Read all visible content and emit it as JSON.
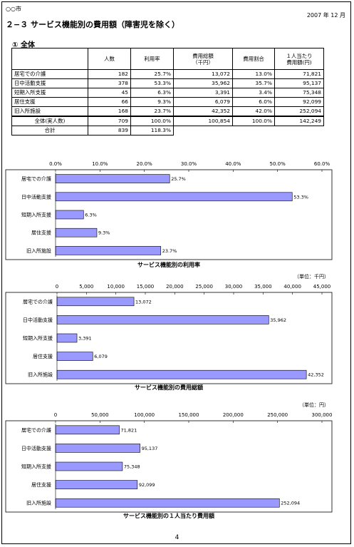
{
  "header": {
    "city": "○○市",
    "date": "2007 年 12 月",
    "title": "２−３ サービス機能別の費用額（障害児を除く）"
  },
  "section": {
    "title": "① 全体"
  },
  "table": {
    "headers": [
      "",
      "人数",
      "利用率",
      "費用総額\n（千円）",
      "費用割合",
      "１人当たり\n費用額(円)"
    ],
    "rows": [
      [
        "居宅での介護",
        "182",
        "25.7%",
        "13,072",
        "13.0%",
        "71,821"
      ],
      [
        "日中活動支援",
        "378",
        "53.3%",
        "35,962",
        "35.7%",
        "95,137"
      ],
      [
        "短期入所支援",
        "45",
        "6.3%",
        "3,391",
        "3.4%",
        "75,348"
      ],
      [
        "居住支援",
        "66",
        "9.3%",
        "6,079",
        "6.0%",
        "92,099"
      ],
      [
        "旧入所施設",
        "168",
        "23.7%",
        "42,352",
        "42.0%",
        "252,094"
      ]
    ],
    "total_row": [
      "全体(実人数)",
      "709",
      "100.0%",
      "100,854",
      "100.0%",
      "142,249"
    ],
    "sum_row": [
      "合計",
      "839",
      "118.3%"
    ]
  },
  "chart_data": [
    {
      "type": "bar",
      "orientation": "horizontal",
      "title": "サービス機能別の利用率",
      "unit": "",
      "categories": [
        "居宅での介護",
        "日中活動支援",
        "短期入所支援",
        "居住支援",
        "旧入所施設"
      ],
      "values": [
        25.7,
        53.3,
        6.3,
        9.3,
        23.7
      ],
      "value_labels": [
        "25.7%",
        "53.3%",
        "6.3%",
        "9.3%",
        "23.7%"
      ],
      "xlim": [
        0,
        60
      ],
      "ticks": [
        0,
        10,
        20,
        30,
        40,
        50,
        60
      ],
      "tick_labels": [
        "0.0%",
        "10.0%",
        "20.0%",
        "30.0%",
        "40.0%",
        "50.0%",
        "60.0%"
      ],
      "bar_color": "#9999ff"
    },
    {
      "type": "bar",
      "orientation": "horizontal",
      "title": "サービス機能別の費用総額",
      "unit": "（単位：千円）",
      "categories": [
        "居宅での介護",
        "日中活動支援",
        "短期入所支援",
        "居住支援",
        "旧入所施設"
      ],
      "values": [
        13072,
        35962,
        3391,
        6079,
        42352
      ],
      "value_labels": [
        "13,072",
        "35,962",
        "3,391",
        "6,079",
        "42,352"
      ],
      "xlim": [
        0,
        45000
      ],
      "ticks": [
        0,
        5000,
        10000,
        15000,
        20000,
        25000,
        30000,
        35000,
        40000,
        45000
      ],
      "tick_labels": [
        "0",
        "5,000",
        "10,000",
        "15,000",
        "20,000",
        "25,000",
        "30,000",
        "35,000",
        "40,000",
        "45,000"
      ],
      "bar_color": "#9999ff"
    },
    {
      "type": "bar",
      "orientation": "horizontal",
      "title": "サービス機能別の１人当たり費用額",
      "unit": "（単位：円）",
      "categories": [
        "居宅での介護",
        "日中活動支援",
        "短期入所支援",
        "居住支援",
        "旧入所施設"
      ],
      "values": [
        71821,
        95137,
        75348,
        92099,
        252094
      ],
      "value_labels": [
        "71,821",
        "95,137",
        "75,348",
        "92,099",
        "252,094"
      ],
      "xlim": [
        0,
        300000
      ],
      "ticks": [
        0,
        50000,
        100000,
        150000,
        200000,
        250000,
        300000
      ],
      "tick_labels": [
        "0",
        "50,000",
        "100,000",
        "150,000",
        "200,000",
        "250,000",
        "300,000"
      ],
      "bar_color": "#9999ff"
    }
  ],
  "footer": {
    "page_number": "4"
  }
}
